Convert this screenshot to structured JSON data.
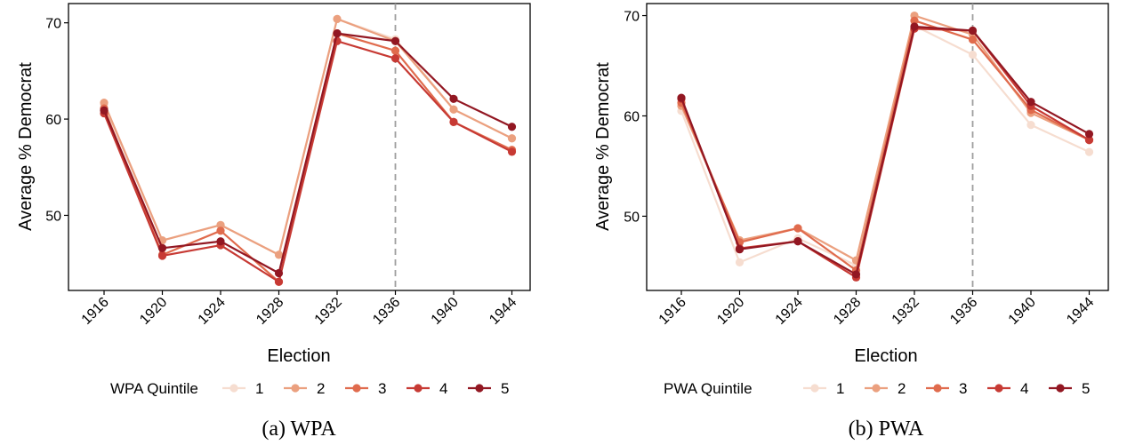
{
  "colors": {
    "q1": "#f6ddd0",
    "q2": "#eba07f",
    "q3": "#e06b4d",
    "q4": "#c73a34",
    "q5": "#921722",
    "vline": "#9e9e9e",
    "axis": "#000000"
  },
  "chart_data": [
    {
      "type": "line",
      "caption": "(a) WPA",
      "xlabel": "Election",
      "ylabel": "Average % Democrat",
      "x": [
        "1916",
        "1920",
        "1924",
        "1928",
        "1932",
        "1936",
        "1940",
        "1944"
      ],
      "ylim": [
        42.2,
        72.0
      ],
      "yticks": [
        "50",
        "60",
        "70"
      ],
      "vline_at": "1936",
      "legend_title": "WPA Quintile",
      "legend_position": "bottom",
      "series": [
        {
          "name": "1",
          "values": [
            61.5,
            47.4,
            49.0,
            45.9,
            70.4,
            68.3,
            61.0,
            58.0
          ]
        },
        {
          "name": "2",
          "values": [
            61.7,
            47.4,
            49.0,
            45.9,
            70.4,
            68.1,
            61.0,
            58.0
          ]
        },
        {
          "name": "3",
          "values": [
            61.1,
            45.9,
            48.4,
            43.1,
            68.9,
            67.1,
            59.7,
            56.8
          ]
        },
        {
          "name": "4",
          "values": [
            60.6,
            45.8,
            46.9,
            43.1,
            68.1,
            66.3,
            59.7,
            56.6
          ]
        },
        {
          "name": "5",
          "values": [
            60.9,
            46.6,
            47.3,
            44.0,
            68.9,
            68.1,
            62.1,
            59.2
          ]
        }
      ]
    },
    {
      "type": "line",
      "caption": "(b) PWA",
      "xlabel": "Election",
      "ylabel": "Average % Democrat",
      "x": [
        "1916",
        "1920",
        "1924",
        "1928",
        "1932",
        "1936",
        "1940",
        "1944"
      ],
      "ylim": [
        42.6,
        71.2
      ],
      "yticks": [
        "50",
        "60",
        "70"
      ],
      "vline_at": "1936",
      "legend_title": "PWA Quintile",
      "legend_position": "bottom",
      "series": [
        {
          "name": "1",
          "values": [
            60.5,
            45.4,
            47.8,
            45.1,
            69.0,
            66.1,
            59.1,
            56.4
          ]
        },
        {
          "name": "2",
          "values": [
            61.0,
            47.6,
            48.8,
            45.6,
            70.0,
            68.1,
            60.3,
            57.6
          ]
        },
        {
          "name": "3",
          "values": [
            61.3,
            47.4,
            48.8,
            44.6,
            69.5,
            67.6,
            60.6,
            57.6
          ]
        },
        {
          "name": "4",
          "values": [
            61.7,
            46.8,
            47.5,
            43.9,
            68.7,
            68.5,
            61.0,
            57.6
          ]
        },
        {
          "name": "5",
          "values": [
            61.8,
            46.7,
            47.5,
            44.2,
            68.9,
            68.5,
            61.4,
            58.2
          ]
        }
      ]
    }
  ]
}
